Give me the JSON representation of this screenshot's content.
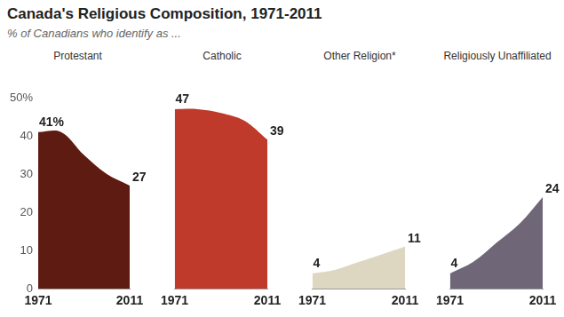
{
  "title": "Canada's Religious Composition, 1971-2011",
  "subtitle": "% of Canadians who identify as ...",
  "chart_data": [
    {
      "type": "area",
      "title": "Protestant",
      "categories": [
        "1971",
        null,
        null,
        null,
        "2011"
      ],
      "values": [
        41,
        41,
        35,
        30,
        27
      ],
      "value_labels": [
        "41%",
        null,
        null,
        null,
        "27"
      ],
      "color": "#5e1b12",
      "ylim": [
        0,
        50
      ],
      "yticks": [
        0,
        10,
        20,
        30,
        40,
        {
          "value": 50,
          "label": "50%"
        }
      ],
      "grid": false,
      "data_labels": true
    },
    {
      "type": "area",
      "title": "Catholic",
      "categories": [
        "1971",
        null,
        null,
        null,
        "2011"
      ],
      "values": [
        47,
        47,
        46,
        44,
        39
      ],
      "value_labels": [
        "47",
        null,
        null,
        null,
        "39"
      ],
      "color": "#bf3a2b",
      "ylim": [
        0,
        50
      ],
      "yticks": [
        0,
        10,
        20,
        30,
        40,
        {
          "value": 50,
          "label": "50%"
        }
      ],
      "grid": false,
      "data_labels": true,
      "tick_labels": "x"
    },
    {
      "type": "area",
      "title": "Other Religion*",
      "categories": [
        "1971",
        null,
        null,
        null,
        "2011"
      ],
      "values": [
        4,
        5,
        7,
        9,
        11
      ],
      "value_labels": [
        "4",
        null,
        null,
        null,
        "11"
      ],
      "color": "#ddd7c2",
      "ylim": [
        0,
        50
      ],
      "yticks": [
        0,
        10,
        20,
        30,
        40,
        {
          "value": 50,
          "label": "50%"
        }
      ],
      "grid": false,
      "data_labels": true,
      "tick_labels": "x"
    },
    {
      "type": "area",
      "title": "Religiously Unaffiliated",
      "categories": [
        "1971",
        null,
        null,
        null,
        "2011"
      ],
      "values": [
        4,
        7,
        12,
        17,
        24
      ],
      "value_labels": [
        "4",
        null,
        null,
        null,
        "24"
      ],
      "color": "#6f6677",
      "ylim": [
        0,
        50
      ],
      "yticks": [
        0,
        10,
        20,
        30,
        40,
        {
          "value": 50,
          "label": "50%"
        }
      ],
      "grid": false,
      "data_labels": true,
      "tick_labels": "x"
    }
  ]
}
